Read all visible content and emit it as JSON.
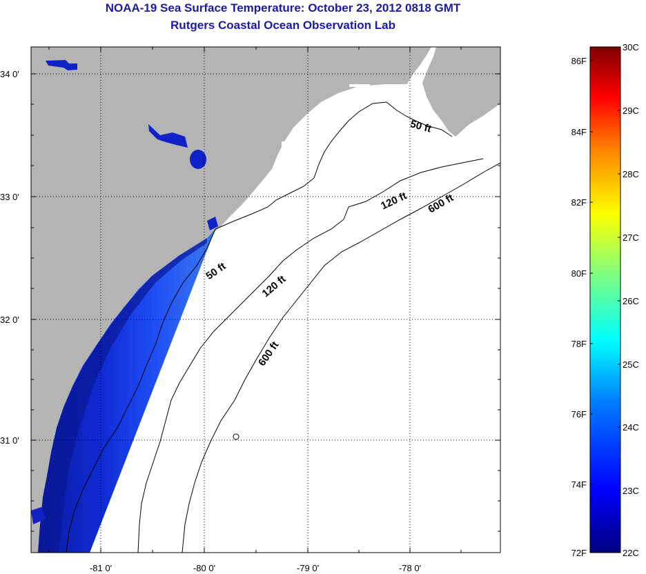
{
  "title": "NOAA-19 Sea Surface Temperature:  October 23, 2012 0818 GMT",
  "subtitle": "Rutgers Coastal Ocean Observation Lab",
  "map": {
    "lat_labels": [
      "34 0'",
      "33 0'",
      "32 0'",
      "31 0'"
    ],
    "lon_labels": [
      "-81 0'",
      "-80 0'",
      "-79 0'",
      "-78 0'"
    ],
    "contours": [
      {
        "label": "50 ft",
        "value_ft": 50
      },
      {
        "label": "50 ft",
        "value_ft": 50
      },
      {
        "label": "120 ft",
        "value_ft": 120
      },
      {
        "label": "120 ft",
        "value_ft": 120
      },
      {
        "label": "600 ft",
        "value_ft": 600
      },
      {
        "label": "600 ft",
        "value_ft": 600
      }
    ],
    "colors": {
      "land": "#b4b4b4",
      "ocean_no_data": "#ffffff",
      "grid": "#000000"
    }
  },
  "colorbar": {
    "fahrenheit_labels": [
      "86F",
      "84F",
      "82F",
      "80F",
      "78F",
      "76F",
      "74F",
      "72F"
    ],
    "celsius_labels": [
      "30C",
      "29C",
      "28C",
      "27C",
      "26C",
      "25C",
      "24C",
      "23C",
      "22C"
    ],
    "range_f": [
      72,
      86
    ],
    "range_c": [
      22,
      30
    ],
    "colors": [
      "#00007f",
      "#0000ff",
      "#007fff",
      "#00ffff",
      "#7fff7f",
      "#ffff00",
      "#ff7f00",
      "#ff0000",
      "#7f0000"
    ]
  }
}
